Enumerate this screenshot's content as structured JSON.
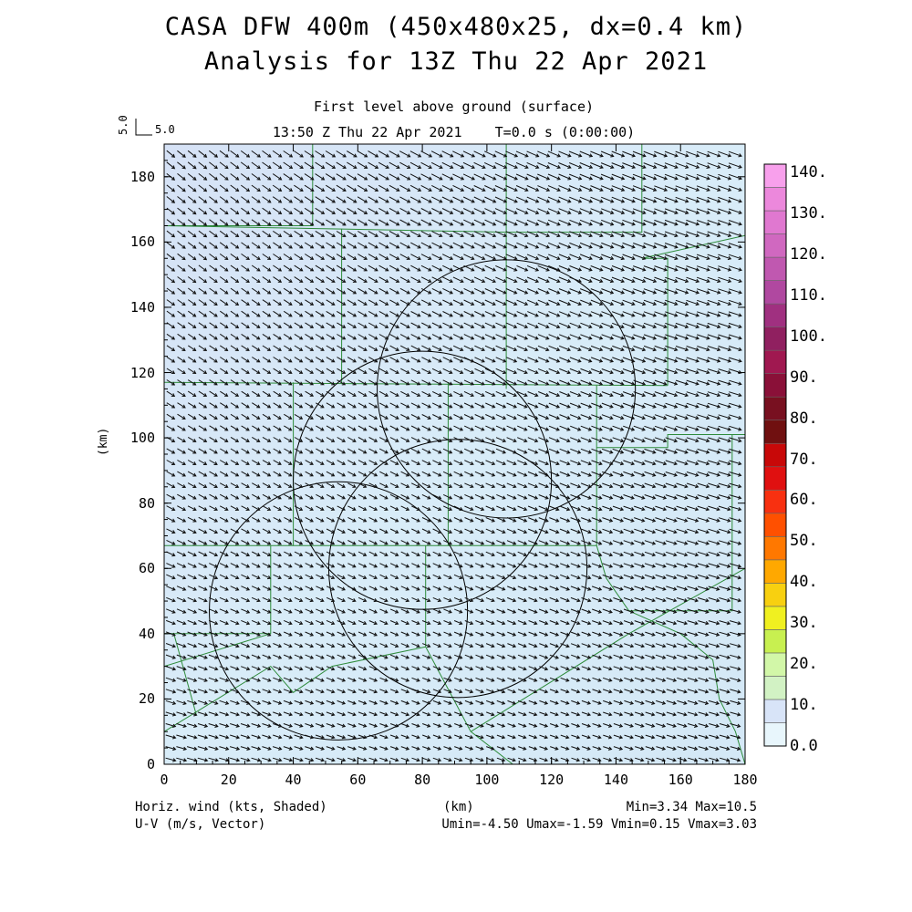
{
  "header": {
    "title_line1": "CASA DFW 400m (450x480x25, dx=0.4 km)",
    "title_line2": "Analysis for 13Z Thu 22 Apr 2021",
    "level": "First level above ground (surface)",
    "valid_time": "13:50 Z Thu 22 Apr 2021    T=0.0 s (0:00:00)"
  },
  "reference_vector": {
    "vertical_label": "5.0",
    "horizontal_label": "5.0"
  },
  "footer": {
    "left_line1": "Horiz. wind (kts, Shaded)",
    "left_line2": "U-V (m/s, Vector)",
    "x_unit": "(km)",
    "right_line1": "Min=3.34 Max=10.5",
    "right_line2": "Umin=-4.50 Umax=-1.59 Vmin=0.15 Vmax=3.03"
  },
  "axes": {
    "y_label": "(km)",
    "x_ticks": [
      "0",
      "20",
      "40",
      "60",
      "80",
      "100",
      "120",
      "140",
      "160",
      "180"
    ],
    "y_ticks": [
      "0",
      "20",
      "40",
      "60",
      "80",
      "100",
      "120",
      "140",
      "160",
      "180"
    ],
    "xlim": [
      0,
      180
    ],
    "ylim": [
      0,
      190
    ]
  },
  "colorbar": {
    "labels": [
      "0.0",
      "10.",
      "20.",
      "30.",
      "40.",
      "50.",
      "60.",
      "70.",
      "80.",
      "90.",
      "100.",
      "110.",
      "120.",
      "130.",
      "140."
    ],
    "colors": [
      "#e8f6fc",
      "#d8e4f8",
      "#d2f2c4",
      "#d2f7a8",
      "#c8f050",
      "#f0f020",
      "#f8d010",
      "#ffa800",
      "#ff7800",
      "#ff5000",
      "#f83010",
      "#e01010",
      "#c80808",
      "#701010",
      "#781020",
      "#8a1038",
      "#a01850",
      "#902060",
      "#a03080",
      "#b048a0",
      "#c058b0",
      "#d068c0",
      "#e078d0",
      "#ec88dc",
      "#f8a0ec"
    ]
  },
  "field": {
    "shade_color": "#d7e9f7",
    "u_range": [
      -4.5,
      -1.59
    ],
    "v_range": [
      0.15,
      3.03
    ]
  },
  "radar_circles_km": [
    {
      "cx": 106,
      "cy": 115,
      "r": 40
    },
    {
      "cx": 80,
      "cy": 87,
      "r": 40
    },
    {
      "cx": 91,
      "cy": 60,
      "r": 40
    },
    {
      "cx": 54,
      "cy": 47,
      "r": 40
    }
  ],
  "county_lines_km": [
    [
      [
        0,
        165
      ],
      [
        46,
        165
      ],
      [
        46,
        190
      ]
    ],
    [
      [
        0,
        165
      ],
      [
        55,
        164
      ],
      [
        55,
        117
      ]
    ],
    [
      [
        55,
        164
      ],
      [
        106,
        163
      ],
      [
        106,
        190
      ]
    ],
    [
      [
        106,
        163
      ],
      [
        148,
        163
      ],
      [
        148,
        190
      ]
    ],
    [
      [
        148,
        155
      ],
      [
        180,
        162
      ]
    ],
    [
      [
        148,
        155
      ],
      [
        156,
        155
      ],
      [
        156,
        116
      ]
    ],
    [
      [
        0,
        117
      ],
      [
        156,
        116
      ]
    ],
    [
      [
        106,
        163
      ],
      [
        106,
        115
      ]
    ],
    [
      [
        40,
        117
      ],
      [
        40,
        67
      ],
      [
        0,
        67
      ]
    ],
    [
      [
        40,
        67
      ],
      [
        134,
        67
      ]
    ],
    [
      [
        88,
        117
      ],
      [
        88,
        67
      ]
    ],
    [
      [
        134,
        116
      ],
      [
        134,
        67
      ]
    ],
    [
      [
        134,
        97
      ],
      [
        156,
        97
      ],
      [
        156,
        101
      ],
      [
        176,
        101
      ],
      [
        176,
        47
      ],
      [
        144,
        47
      ]
    ],
    [
      [
        176,
        101
      ],
      [
        180,
        101
      ]
    ],
    [
      [
        134,
        67
      ],
      [
        137,
        57
      ],
      [
        144,
        47
      ]
    ],
    [
      [
        33,
        67
      ],
      [
        33,
        40
      ],
      [
        0,
        40
      ]
    ],
    [
      [
        0,
        30
      ],
      [
        33,
        40
      ]
    ],
    [
      [
        3,
        40
      ],
      [
        10,
        15
      ]
    ],
    [
      [
        0,
        10
      ],
      [
        33,
        30
      ],
      [
        40,
        22
      ],
      [
        52,
        30
      ],
      [
        81,
        36
      ]
    ],
    [
      [
        81,
        67
      ],
      [
        81,
        36
      ],
      [
        95,
        10
      ],
      [
        108,
        0
      ]
    ],
    [
      [
        95,
        10
      ],
      [
        144,
        40
      ],
      [
        180,
        60
      ]
    ],
    [
      [
        144,
        47
      ],
      [
        160,
        40
      ],
      [
        170,
        32
      ],
      [
        172,
        20
      ],
      [
        177,
        10
      ],
      [
        180,
        0
      ]
    ]
  ]
}
